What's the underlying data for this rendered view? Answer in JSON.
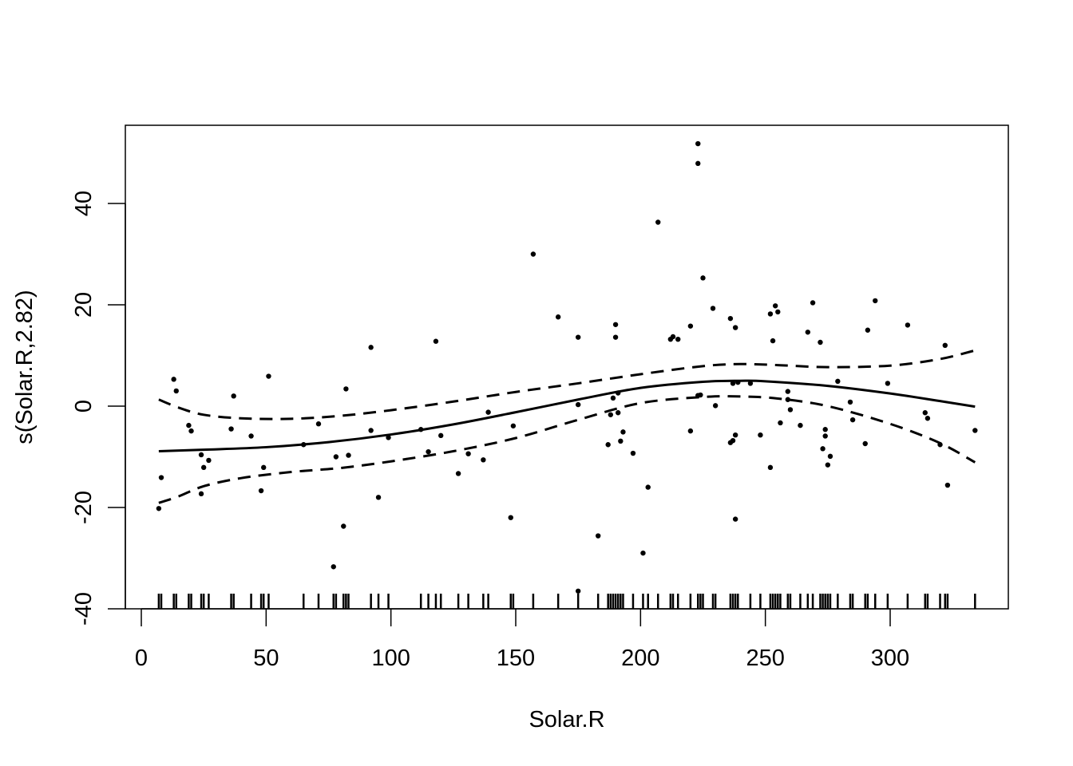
{
  "chart_data": {
    "type": "scatter",
    "title": "",
    "xlabel": "Solar.R",
    "ylabel": "s(Solar.R,2.82)",
    "xlim": [
      0,
      334
    ],
    "ylim": [
      -40,
      52
    ],
    "x_ticks": [
      0,
      50,
      100,
      150,
      200,
      250,
      300
    ],
    "y_ticks": [
      -40,
      -20,
      0,
      20,
      40
    ],
    "grid": false,
    "legend": "none",
    "series": [
      {
        "kind": "line",
        "style": "solid",
        "points": [
          [
            7,
            -8.9
          ],
          [
            25,
            -8.6
          ],
          [
            50,
            -8.1
          ],
          [
            75,
            -7.1
          ],
          [
            100,
            -5.6
          ],
          [
            125,
            -3.6
          ],
          [
            150,
            -1.2
          ],
          [
            175,
            1.3
          ],
          [
            200,
            3.6
          ],
          [
            225,
            4.8
          ],
          [
            240,
            5.0
          ],
          [
            250,
            4.9
          ],
          [
            275,
            4.0
          ],
          [
            300,
            2.5
          ],
          [
            320,
            1.0
          ],
          [
            334,
            -0.1
          ]
        ]
      },
      {
        "kind": "line",
        "style": "dashed",
        "points": [
          [
            7,
            1.3
          ],
          [
            15,
            -0.3
          ],
          [
            25,
            -1.7
          ],
          [
            40,
            -2.4
          ],
          [
            60,
            -2.5
          ],
          [
            80,
            -1.9
          ],
          [
            100,
            -0.8
          ],
          [
            125,
            0.9
          ],
          [
            150,
            2.8
          ],
          [
            175,
            4.5
          ],
          [
            200,
            6.3
          ],
          [
            225,
            7.9
          ],
          [
            240,
            8.3
          ],
          [
            255,
            8.1
          ],
          [
            275,
            7.7
          ],
          [
            300,
            8.0
          ],
          [
            320,
            9.3
          ],
          [
            334,
            11.0
          ]
        ]
      },
      {
        "kind": "line",
        "style": "dashed",
        "points": [
          [
            7,
            -19.1
          ],
          [
            15,
            -17.8
          ],
          [
            25,
            -15.8
          ],
          [
            40,
            -14.2
          ],
          [
            60,
            -13.0
          ],
          [
            80,
            -12.2
          ],
          [
            100,
            -10.9
          ],
          [
            125,
            -8.9
          ],
          [
            150,
            -6.3
          ],
          [
            175,
            -2.7
          ],
          [
            200,
            0.6
          ],
          [
            225,
            1.8
          ],
          [
            240,
            1.9
          ],
          [
            255,
            1.5
          ],
          [
            275,
            0.0
          ],
          [
            300,
            -3.5
          ],
          [
            320,
            -7.3
          ],
          [
            334,
            -11.1
          ]
        ]
      },
      {
        "kind": "points",
        "points": [
          [
            7,
            -20.2
          ],
          [
            8,
            -14.1
          ],
          [
            13,
            5.3
          ],
          [
            14,
            3.0
          ],
          [
            19,
            -3.8
          ],
          [
            20,
            -4.9
          ],
          [
            24,
            -9.6
          ],
          [
            24,
            -17.3
          ],
          [
            25,
            -12.1
          ],
          [
            27,
            -10.7
          ],
          [
            36,
            -4.5
          ],
          [
            37,
            2.0
          ],
          [
            44,
            -5.9
          ],
          [
            48,
            -16.7
          ],
          [
            49,
            -12.1
          ],
          [
            51,
            5.9
          ],
          [
            65,
            -7.6
          ],
          [
            71,
            -3.5
          ],
          [
            77,
            -31.7
          ],
          [
            78,
            -10.0
          ],
          [
            81,
            -23.7
          ],
          [
            82,
            3.4
          ],
          [
            83,
            -9.7
          ],
          [
            92,
            -4.8
          ],
          [
            92,
            11.6
          ],
          [
            95,
            -18.0
          ],
          [
            99,
            -6.2
          ],
          [
            112,
            -4.6
          ],
          [
            115,
            -9.0
          ],
          [
            118,
            12.8
          ],
          [
            120,
            -5.8
          ],
          [
            127,
            -13.3
          ],
          [
            131,
            -9.4
          ],
          [
            137,
            -10.6
          ],
          [
            139,
            -1.2
          ],
          [
            148,
            -22.0
          ],
          [
            149,
            -3.9
          ],
          [
            157,
            30.0
          ],
          [
            167,
            17.6
          ],
          [
            175,
            13.6
          ],
          [
            175,
            0.3
          ],
          [
            175,
            -36.5
          ],
          [
            183,
            -25.6
          ],
          [
            187,
            -7.6
          ],
          [
            188,
            -1.7
          ],
          [
            189,
            1.6
          ],
          [
            190,
            16.1
          ],
          [
            190,
            13.6
          ],
          [
            191,
            2.6
          ],
          [
            191,
            -1.3
          ],
          [
            192,
            -6.9
          ],
          [
            193,
            -5.1
          ],
          [
            197,
            -9.3
          ],
          [
            201,
            -29.0
          ],
          [
            203,
            -16.0
          ],
          [
            207,
            36.3
          ],
          [
            212,
            13.2
          ],
          [
            213,
            13.7
          ],
          [
            215,
            13.2
          ],
          [
            220,
            15.8
          ],
          [
            220,
            -4.9
          ],
          [
            223,
            51.8
          ],
          [
            223,
            47.9
          ],
          [
            223,
            2.1
          ],
          [
            224,
            2.2
          ],
          [
            225,
            25.3
          ],
          [
            229,
            19.3
          ],
          [
            230,
            0.1
          ],
          [
            236,
            17.3
          ],
          [
            236,
            -7.2
          ],
          [
            237,
            -6.8
          ],
          [
            237,
            4.5
          ],
          [
            238,
            15.5
          ],
          [
            238,
            -5.7
          ],
          [
            238,
            -22.3
          ],
          [
            239,
            4.7
          ],
          [
            244,
            4.5
          ],
          [
            248,
            -5.7
          ],
          [
            252,
            -12.1
          ],
          [
            252,
            18.2
          ],
          [
            253,
            12.9
          ],
          [
            254,
            19.8
          ],
          [
            255,
            18.6
          ],
          [
            256,
            -3.3
          ],
          [
            259,
            2.9
          ],
          [
            259,
            1.3
          ],
          [
            260,
            -0.7
          ],
          [
            264,
            -3.8
          ],
          [
            267,
            14.6
          ],
          [
            269,
            20.4
          ],
          [
            272,
            12.6
          ],
          [
            273,
            -8.4
          ],
          [
            274,
            -5.9
          ],
          [
            274,
            -4.6
          ],
          [
            275,
            -11.6
          ],
          [
            276,
            -9.9
          ],
          [
            279,
            4.9
          ],
          [
            284,
            0.8
          ],
          [
            285,
            -2.7
          ],
          [
            290,
            -7.4
          ],
          [
            291,
            15.0
          ],
          [
            294,
            20.8
          ],
          [
            299,
            4.5
          ],
          [
            307,
            16.0
          ],
          [
            314,
            -1.3
          ],
          [
            315,
            -2.4
          ],
          [
            320,
            -7.6
          ],
          [
            322,
            12.0
          ],
          [
            323,
            -15.6
          ],
          [
            334,
            -4.8
          ]
        ]
      }
    ],
    "rug": [
      7,
      8,
      13,
      14,
      19,
      20,
      24,
      25,
      27,
      36,
      37,
      44,
      48,
      49,
      51,
      65,
      71,
      77,
      78,
      81,
      82,
      83,
      92,
      95,
      99,
      112,
      115,
      118,
      120,
      127,
      131,
      137,
      139,
      148,
      149,
      157,
      167,
      175,
      183,
      187,
      188,
      189,
      190,
      191,
      192,
      193,
      197,
      201,
      203,
      207,
      212,
      213,
      215,
      220,
      223,
      224,
      225,
      229,
      230,
      236,
      237,
      238,
      239,
      244,
      248,
      252,
      253,
      254,
      255,
      256,
      259,
      260,
      264,
      267,
      269,
      272,
      273,
      274,
      275,
      276,
      279,
      284,
      285,
      290,
      291,
      294,
      299,
      307,
      314,
      315,
      320,
      322,
      323,
      334
    ]
  }
}
